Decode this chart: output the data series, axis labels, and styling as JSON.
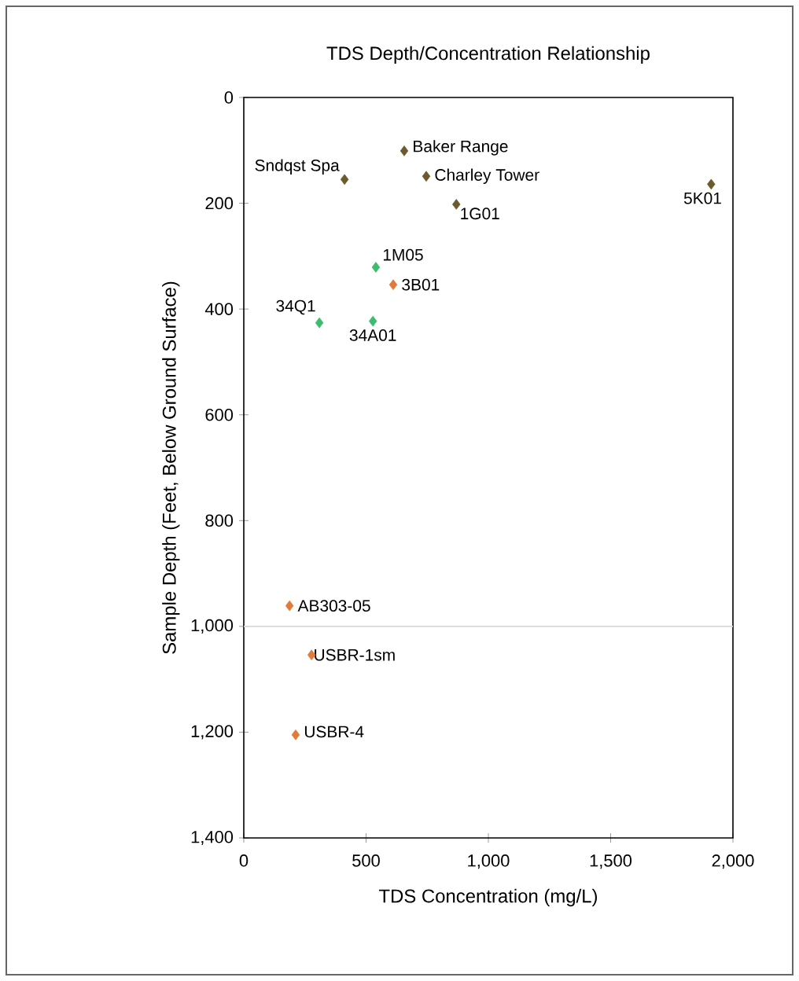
{
  "chart_data": {
    "type": "scatter",
    "title": "TDS Depth/Concentration Relationship",
    "xlabel": "TDS Concentration (mg/L)",
    "ylabel": "Sample Depth (Feet, Below Ground Surface)",
    "marker": "diamond",
    "grid": false,
    "xlim": [
      0,
      2000
    ],
    "xticks": [
      0,
      500,
      {
        "value": 1000,
        "label": "1,000"
      },
      {
        "value": 1500,
        "label": "1,500"
      },
      {
        "value": 2000,
        "label": "2,000"
      }
    ],
    "ylim": [
      1400,
      0
    ],
    "yticks": [
      0,
      200,
      400,
      600,
      800,
      {
        "value": 1000,
        "label": "1,000"
      },
      {
        "value": 1200,
        "label": "1,200"
      },
      {
        "value": 1400,
        "label": "1,400"
      }
    ],
    "series": [
      {
        "color": "#6b5a2e",
        "x": [
          412,
          656,
          746,
          869,
          1911
        ],
        "values": [
          155,
          101,
          149,
          202,
          164
        ]
      },
      {
        "color": "#3dbb6e",
        "x": [
          540,
          309,
          528
        ],
        "values": [
          321,
          426,
          423
        ]
      },
      {
        "color": "#e07b39",
        "x": [
          611,
          187,
          277,
          212
        ],
        "values": [
          354,
          961,
          1054,
          1205
        ]
      }
    ],
    "ref_lines": [
      {
        "axis": "y",
        "value": 1000,
        "color": "#d9d9d9"
      }
    ],
    "annotations": [
      {
        "text": "Sndqst Spa",
        "x": 412,
        "y": 155
      },
      {
        "text": "Baker Range",
        "x": 656,
        "y": 101
      },
      {
        "text": "Charley Tower",
        "x": 746,
        "y": 149
      },
      {
        "text": "1G01",
        "x": 869,
        "y": 202
      },
      {
        "text": "5K01",
        "x": 1911,
        "y": 164
      },
      {
        "text": "1M05",
        "x": 540,
        "y": 321
      },
      {
        "text": "3B01",
        "x": 611,
        "y": 354
      },
      {
        "text": "34Q1",
        "x": 309,
        "y": 426
      },
      {
        "text": "34A01",
        "x": 528,
        "y": 423
      },
      {
        "text": "AB303-05",
        "x": 187,
        "y": 961
      },
      {
        "text": "USBR-1sm",
        "x": 277,
        "y": 1054
      },
      {
        "text": "USBR-4",
        "x": 212,
        "y": 1205
      }
    ]
  }
}
